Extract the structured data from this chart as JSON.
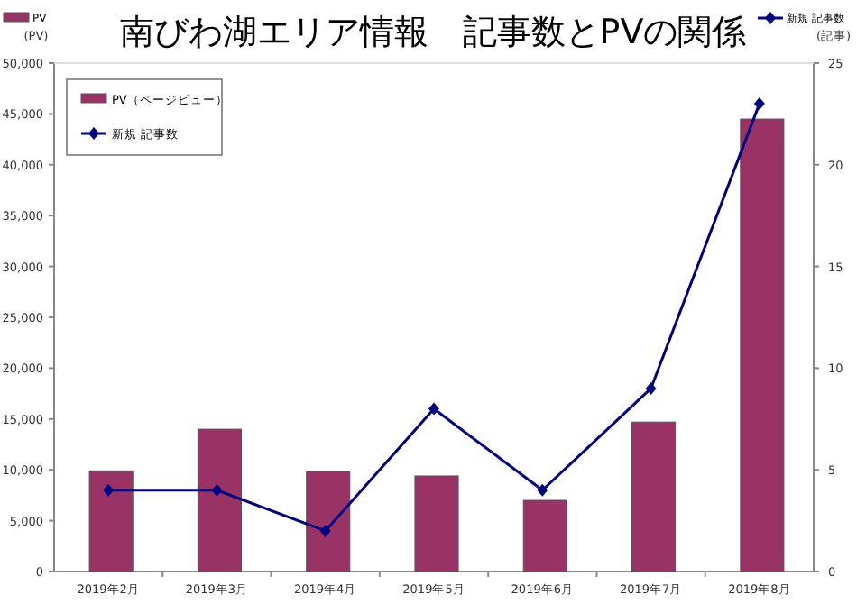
{
  "chart_data": {
    "type": "bar",
    "title": "南びわ湖エリア情報　記事数とPVの関係",
    "ylabel": "(PV)",
    "y2label": "(記事)",
    "annotations": [
      "PV",
      "新規 記事数"
    ],
    "categories": [
      "2019年2月",
      "2019年3月",
      "2019年4月",
      "2019年5月",
      "2019年6月",
      "2019年7月",
      "2019年8月"
    ],
    "series": [
      {
        "name": "PV（ページビュー）",
        "color": "#993366",
        "values": [
          9900,
          14000,
          9800,
          9400,
          7000,
          14700,
          44500
        ]
      },
      {
        "name": "新規 記事数",
        "type": "line",
        "axis": "y2",
        "color": "#000080",
        "marker": "diamond",
        "values": [
          4,
          4,
          2,
          8,
          4,
          9,
          23
        ]
      }
    ],
    "ylim": [
      0,
      50000
    ],
    "yticks": [
      0,
      {
        "value": 5000,
        "label": "5,000"
      },
      {
        "value": 10000,
        "label": "10,000"
      },
      {
        "value": 15000,
        "label": "15,000"
      },
      {
        "value": 20000,
        "label": "20,000"
      },
      {
        "value": 25000,
        "label": "25,000"
      },
      {
        "value": 30000,
        "label": "30,000"
      },
      {
        "value": 35000,
        "label": "35,000"
      },
      {
        "value": 40000,
        "label": "40,000"
      },
      {
        "value": 45000,
        "label": "45,000"
      },
      {
        "value": 50000,
        "label": "50,000"
      }
    ],
    "y2lim": [
      0,
      25
    ],
    "y2ticks": [
      0,
      5,
      10,
      15,
      20,
      25
    ],
    "grid": false,
    "legend": "top left"
  }
}
